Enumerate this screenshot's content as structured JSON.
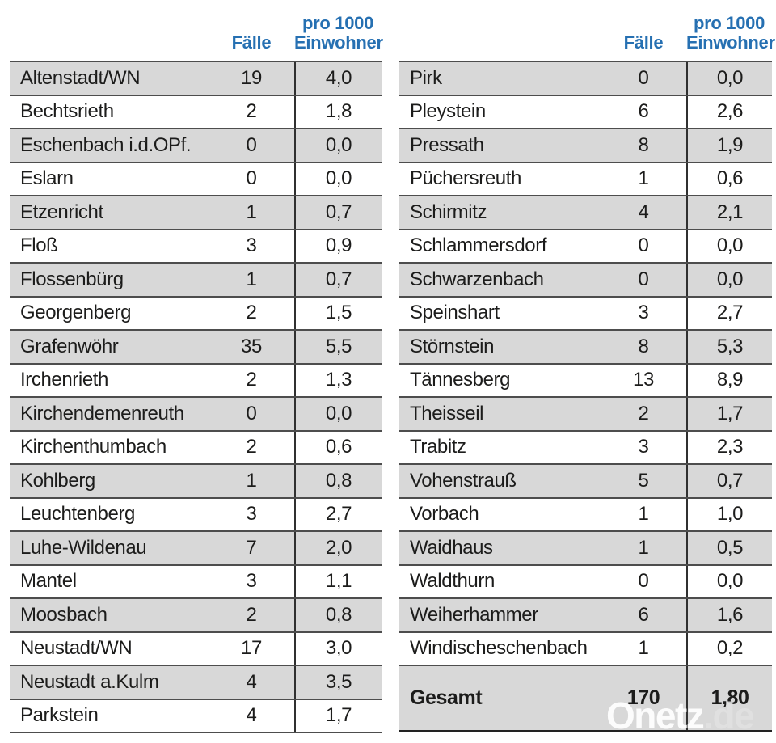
{
  "colors": {
    "header_blue": "#2670b2",
    "row_gray": "#d8d8d8",
    "row_white": "#ffffff",
    "separator_line": "#4d4d4d",
    "column_divider": "#303030",
    "text": "#1c1c1b"
  },
  "header": {
    "cases_label": "Fälle",
    "rate_line1": "pro 1000",
    "rate_line2": "Einwohner"
  },
  "tables": {
    "left": {
      "rows": [
        {
          "name": "Altenstadt/WN",
          "cases": "19",
          "rate": "4,0"
        },
        {
          "name": "Bechtsrieth",
          "cases": "2",
          "rate": "1,8"
        },
        {
          "name": "Eschenbach i.d.OPf.",
          "cases": "0",
          "rate": "0,0"
        },
        {
          "name": "Eslarn",
          "cases": "0",
          "rate": "0,0"
        },
        {
          "name": "Etzenricht",
          "cases": "1",
          "rate": "0,7"
        },
        {
          "name": "Floß",
          "cases": "3",
          "rate": "0,9"
        },
        {
          "name": "Flossenbürg",
          "cases": "1",
          "rate": "0,7"
        },
        {
          "name": "Georgenberg",
          "cases": "2",
          "rate": "1,5"
        },
        {
          "name": "Grafenwöhr",
          "cases": "35",
          "rate": "5,5"
        },
        {
          "name": "Irchenrieth",
          "cases": "2",
          "rate": "1,3"
        },
        {
          "name": "Kirchendemenreuth",
          "cases": "0",
          "rate": "0,0"
        },
        {
          "name": "Kirchenthumbach",
          "cases": "2",
          "rate": "0,6"
        },
        {
          "name": "Kohlberg",
          "cases": "1",
          "rate": "0,8"
        },
        {
          "name": "Leuchtenberg",
          "cases": "3",
          "rate": "2,7"
        },
        {
          "name": "Luhe-Wildenau",
          "cases": "7",
          "rate": "2,0"
        },
        {
          "name": "Mantel",
          "cases": "3",
          "rate": "1,1"
        },
        {
          "name": "Moosbach",
          "cases": "2",
          "rate": "0,8"
        },
        {
          "name": "Neustadt/WN",
          "cases": "17",
          "rate": "3,0"
        },
        {
          "name": "Neustadt a.Kulm",
          "cases": "4",
          "rate": "3,5"
        },
        {
          "name": "Parkstein",
          "cases": "4",
          "rate": "1,7"
        }
      ]
    },
    "right": {
      "rows": [
        {
          "name": "Pirk",
          "cases": "0",
          "rate": "0,0"
        },
        {
          "name": "Pleystein",
          "cases": "6",
          "rate": "2,6"
        },
        {
          "name": "Pressath",
          "cases": "8",
          "rate": "1,9"
        },
        {
          "name": "Püchersreuth",
          "cases": "1",
          "rate": "0,6"
        },
        {
          "name": "Schirmitz",
          "cases": "4",
          "rate": "2,1"
        },
        {
          "name": "Schlammersdorf",
          "cases": "0",
          "rate": "0,0"
        },
        {
          "name": "Schwarzenbach",
          "cases": "0",
          "rate": "0,0"
        },
        {
          "name": "Speinshart",
          "cases": "3",
          "rate": "2,7"
        },
        {
          "name": "Störnstein",
          "cases": "8",
          "rate": "5,3"
        },
        {
          "name": "Tännesberg",
          "cases": "13",
          "rate": "8,9"
        },
        {
          "name": "Theisseil",
          "cases": "2",
          "rate": "1,7"
        },
        {
          "name": "Trabitz",
          "cases": "3",
          "rate": "2,3"
        },
        {
          "name": "Vohenstrauß",
          "cases": "5",
          "rate": "0,7"
        },
        {
          "name": "Vorbach",
          "cases": "1",
          "rate": "1,0"
        },
        {
          "name": "Waidhaus",
          "cases": "1",
          "rate": "0,5"
        },
        {
          "name": "Waldthurn",
          "cases": "0",
          "rate": "0,0"
        },
        {
          "name": "Weiherhammer",
          "cases": "6",
          "rate": "1,6"
        },
        {
          "name": "Windischeschenbach",
          "cases": "1",
          "rate": "0,2"
        }
      ],
      "total": {
        "label": "Gesamt",
        "cases": "170",
        "rate": "1,80"
      }
    }
  },
  "watermark": {
    "brand": "Onetz",
    "suffix": ".de"
  }
}
